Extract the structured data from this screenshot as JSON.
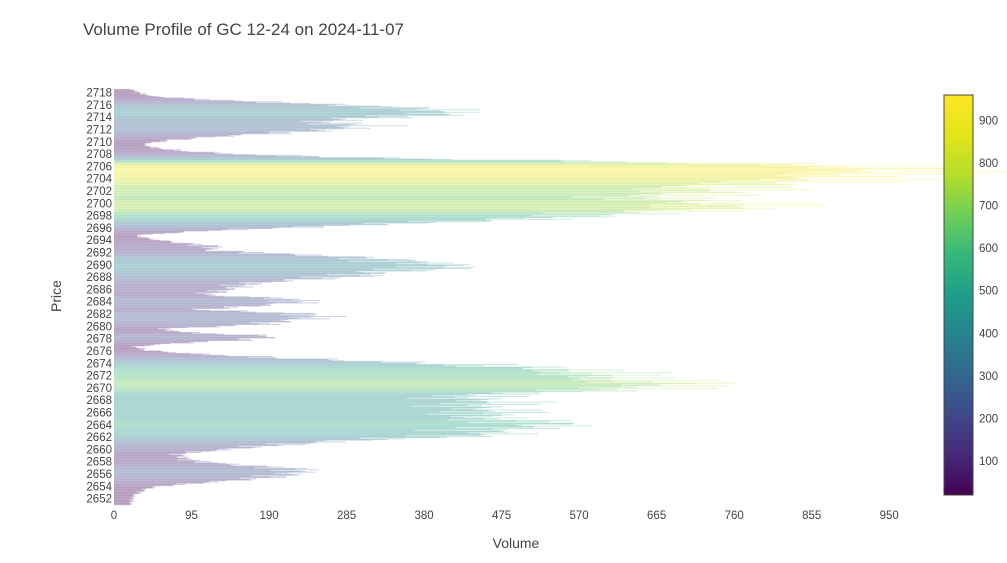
{
  "chart_data": {
    "type": "bar",
    "orientation": "horizontal",
    "title": "Volume Profile of GC 12-24 on 2024-11-07",
    "xlabel": "Volume",
    "ylabel": "Price",
    "xlim": [
      0,
      1000
    ],
    "ylim": [
      2650.8,
      2718.9
    ],
    "x_ticks": [
      "0",
      "95",
      "190",
      "285",
      "380",
      "475",
      "570",
      "665",
      "760",
      "855",
      "950"
    ],
    "x_tick_values": [
      0,
      95,
      190,
      285,
      380,
      475,
      570,
      665,
      760,
      855,
      950
    ],
    "y_tick_values": [
      2652,
      2654,
      2656,
      2658,
      2660,
      2662,
      2664,
      2666,
      2668,
      2670,
      2672,
      2674,
      2676,
      2678,
      2680,
      2682,
      2684,
      2686,
      2688,
      2690,
      2692,
      2694,
      2696,
      2698,
      2700,
      2702,
      2704,
      2706,
      2708,
      2710,
      2712,
      2714,
      2716,
      2718
    ],
    "price_step": 0.1,
    "colorscale": "Viridis",
    "bar_opacity": 0.25,
    "colorbar": {
      "range": [
        20,
        960
      ],
      "ticks": [
        "100",
        "200",
        "300",
        "400",
        "500",
        "600",
        "700",
        "800",
        "900"
      ],
      "tick_values": [
        100,
        200,
        300,
        400,
        500,
        600,
        700,
        800,
        900
      ]
    },
    "grid": false,
    "legend": "none",
    "profile_anchors": [
      [
        2651.0,
        20
      ],
      [
        2652.5,
        24
      ],
      [
        2653.6,
        40
      ],
      [
        2654.0,
        55
      ],
      [
        2654.6,
        110
      ],
      [
        2655.2,
        175
      ],
      [
        2655.8,
        210
      ],
      [
        2656.4,
        230
      ],
      [
        2656.9,
        220
      ],
      [
        2657.5,
        150
      ],
      [
        2658.1,
        100
      ],
      [
        2658.6,
        85
      ],
      [
        2659.3,
        80
      ],
      [
        2660.0,
        140
      ],
      [
        2660.7,
        200
      ],
      [
        2661.4,
        280
      ],
      [
        2662.0,
        400
      ],
      [
        2662.6,
        480
      ],
      [
        2663.1,
        440
      ],
      [
        2663.6,
        510
      ],
      [
        2664.1,
        545
      ],
      [
        2664.6,
        500
      ],
      [
        2665.1,
        450
      ],
      [
        2665.7,
        455
      ],
      [
        2666.3,
        470
      ],
      [
        2667.0,
        430
      ],
      [
        2667.7,
        480
      ],
      [
        2668.3,
        420
      ],
      [
        2669.0,
        460
      ],
      [
        2669.6,
        600
      ],
      [
        2670.2,
        660
      ],
      [
        2670.7,
        690
      ],
      [
        2671.3,
        620
      ],
      [
        2671.9,
        600
      ],
      [
        2672.5,
        580
      ],
      [
        2673.1,
        540
      ],
      [
        2673.8,
        420
      ],
      [
        2674.4,
        300
      ],
      [
        2675.0,
        180
      ],
      [
        2675.6,
        90
      ],
      [
        2676.1,
        40
      ],
      [
        2676.7,
        25
      ],
      [
        2677.2,
        70
      ],
      [
        2677.8,
        160
      ],
      [
        2678.4,
        200
      ],
      [
        2679.0,
        90
      ],
      [
        2679.6,
        55
      ],
      [
        2680.2,
        170
      ],
      [
        2680.8,
        205
      ],
      [
        2681.5,
        250
      ],
      [
        2682.1,
        230
      ],
      [
        2682.7,
        100
      ],
      [
        2683.3,
        170
      ],
      [
        2683.9,
        230
      ],
      [
        2684.5,
        215
      ],
      [
        2685.1,
        110
      ],
      [
        2685.7,
        130
      ],
      [
        2686.3,
        150
      ],
      [
        2686.9,
        160
      ],
      [
        2687.5,
        220
      ],
      [
        2688.2,
        300
      ],
      [
        2688.8,
        320
      ],
      [
        2689.4,
        400
      ],
      [
        2690.0,
        410
      ],
      [
        2690.6,
        350
      ],
      [
        2691.2,
        305
      ],
      [
        2691.8,
        200
      ],
      [
        2692.4,
        115
      ],
      [
        2693.0,
        125
      ],
      [
        2693.6,
        80
      ],
      [
        2694.2,
        45
      ],
      [
        2694.8,
        25
      ],
      [
        2695.5,
        110
      ],
      [
        2696.1,
        225
      ],
      [
        2696.7,
        350
      ],
      [
        2697.3,
        470
      ],
      [
        2697.9,
        580
      ],
      [
        2698.5,
        630
      ],
      [
        2699.1,
        740
      ],
      [
        2699.7,
        770
      ],
      [
        2700.3,
        720
      ],
      [
        2700.9,
        640
      ],
      [
        2701.5,
        700
      ],
      [
        2702.1,
        740
      ],
      [
        2702.7,
        710
      ],
      [
        2703.3,
        820
      ],
      [
        2703.9,
        870
      ],
      [
        2704.5,
        900
      ],
      [
        2705.0,
        930
      ],
      [
        2705.6,
        960
      ],
      [
        2706.2,
        880
      ],
      [
        2706.8,
        600
      ],
      [
        2707.4,
        300
      ],
      [
        2708.0,
        150
      ],
      [
        2708.5,
        85
      ],
      [
        2709.0,
        50
      ],
      [
        2709.6,
        35
      ],
      [
        2710.2,
        65
      ],
      [
        2710.8,
        120
      ],
      [
        2711.4,
        200
      ],
      [
        2712.0,
        270
      ],
      [
        2712.6,
        310
      ],
      [
        2713.2,
        250
      ],
      [
        2713.8,
        300
      ],
      [
        2714.4,
        400
      ],
      [
        2715.0,
        410
      ],
      [
        2715.6,
        350
      ],
      [
        2716.2,
        240
      ],
      [
        2716.8,
        120
      ],
      [
        2717.4,
        45
      ],
      [
        2718.0,
        30
      ],
      [
        2718.5,
        22
      ]
    ]
  }
}
